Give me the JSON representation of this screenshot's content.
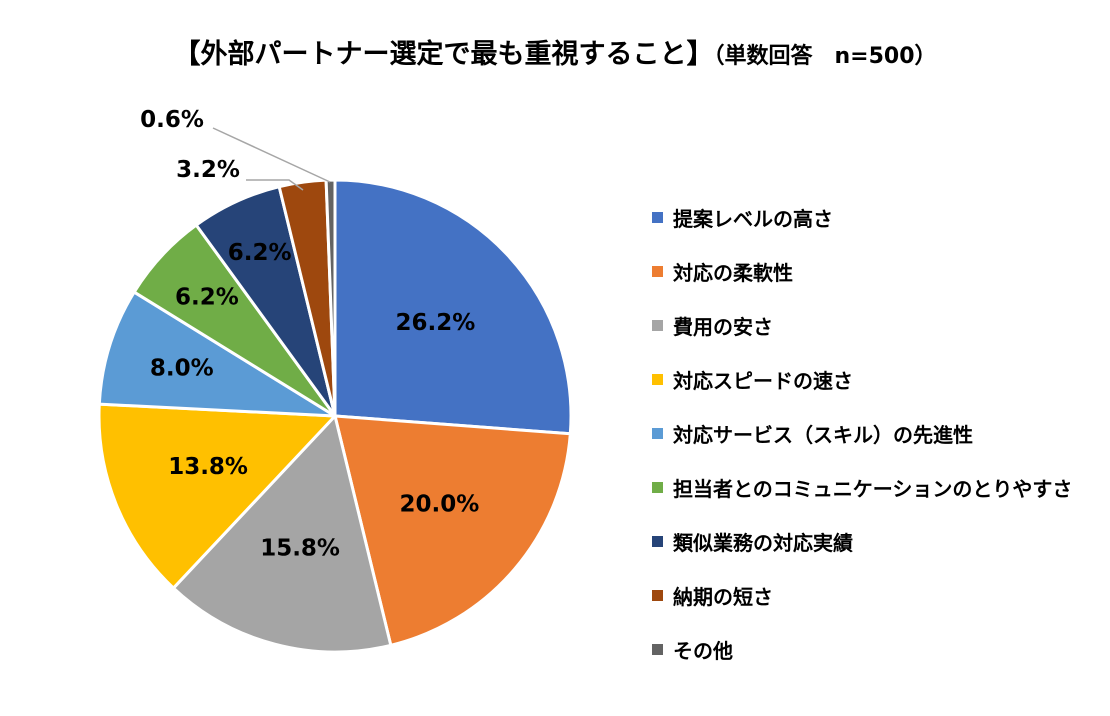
{
  "title": "【外部パートナー選定で最も重視すること】",
  "subtitle": "（単数回答　n=500）",
  "chart_data": {
    "type": "pie",
    "title": "【外部パートナー選定で最も重視すること】（単数回答　n=500）",
    "legend_position": "right",
    "slices": [
      {
        "label": "提案レベルの高さ",
        "value": 26.2,
        "display": "26.2%",
        "color": "#4472C4"
      },
      {
        "label": "対応の柔軟性",
        "value": 20.0,
        "display": "20.0%",
        "color": "#ED7D31"
      },
      {
        "label": "費用の安さ",
        "value": 15.8,
        "display": "15.8%",
        "color": "#A5A5A5"
      },
      {
        "label": "対応スピードの速さ",
        "value": 13.8,
        "display": "13.8%",
        "color": "#FFC000"
      },
      {
        "label": "対応サービス（スキル）の先進性",
        "value": 8.0,
        "display": "8.0%",
        "color": "#5B9BD5"
      },
      {
        "label": "担当者とのコミュニケーションのとりやすさ",
        "value": 6.2,
        "display": "6.2%",
        "color": "#70AD47"
      },
      {
        "label": "類似業務の対応実績",
        "value": 6.2,
        "display": "6.2%",
        "color": "#264478"
      },
      {
        "label": "納期の短さ",
        "value": 3.2,
        "display": "3.2%",
        "color": "#9E480E"
      },
      {
        "label": "その他",
        "value": 0.6,
        "display": "0.6%",
        "color": "#636363"
      }
    ]
  }
}
